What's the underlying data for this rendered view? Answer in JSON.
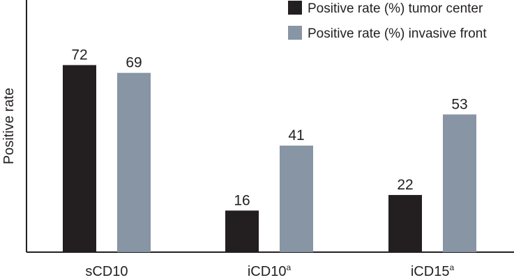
{
  "chart_data": {
    "type": "bar",
    "title": "",
    "xlabel": "",
    "ylabel": "Positive rate",
    "ylim": [
      0,
      80
    ],
    "grid": false,
    "legend_position": "top-right",
    "categories": [
      {
        "label": "sCD10",
        "sup": ""
      },
      {
        "label": "iCD10",
        "sup": "a"
      },
      {
        "label": "iCD15",
        "sup": "a"
      }
    ],
    "series": [
      {
        "name": "Positive rate (%) tumor center",
        "color": "#231f20",
        "values": [
          72,
          16,
          22
        ]
      },
      {
        "name": "Positive rate (%) invasive front",
        "color": "#8795a4",
        "values": [
          69,
          41,
          53
        ]
      }
    ]
  }
}
